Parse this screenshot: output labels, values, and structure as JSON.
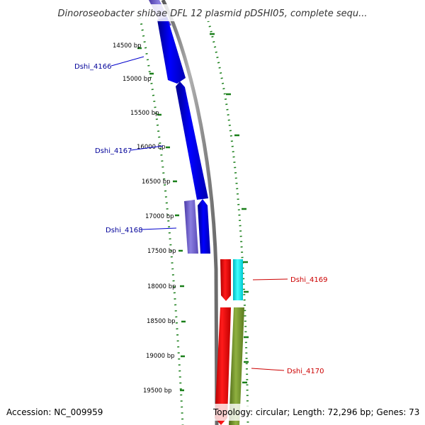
{
  "title": "Dinoroseobacter shibae DFL 12 plasmid pDSHI05, complete sequ...",
  "footer": {
    "accession": "Accession: NC_009959",
    "topology": "Topology: circular; Length: 72,296 bp; Genes: 73"
  },
  "ticks": [
    "14500 bp",
    "15000 bp",
    "15500 bp",
    "16000 bp",
    "16500 bp",
    "17000 bp",
    "17500 bp",
    "18000 bp",
    "18500 bp",
    "19000 bp",
    "19500 bp"
  ],
  "genes": [
    {
      "name": "Dshi_4166",
      "strand": "forward",
      "color": "#0000ee"
    },
    {
      "name": "Dshi_4167",
      "strand": "forward",
      "color": "#0000ee"
    },
    {
      "name": "Dshi_4168",
      "strand": "forward",
      "color": "#6a5acd"
    },
    {
      "name": "Dshi_4169",
      "strand": "reverse",
      "color": "#dd0000"
    },
    {
      "name": "Dshi_4170",
      "strand": "reverse",
      "color": "#dd0000"
    }
  ],
  "colors": {
    "backbone": "#808080",
    "gc_dots": "#1a7f1a",
    "blue_gene": "#0000ee",
    "slate_gene": "#6a5acd",
    "red_gene": "#ff0000",
    "cyan_gene": "#00e5ee",
    "olive_gene": "#6b8e23",
    "label_blue": "#000099",
    "label_red": "#cc0000"
  }
}
